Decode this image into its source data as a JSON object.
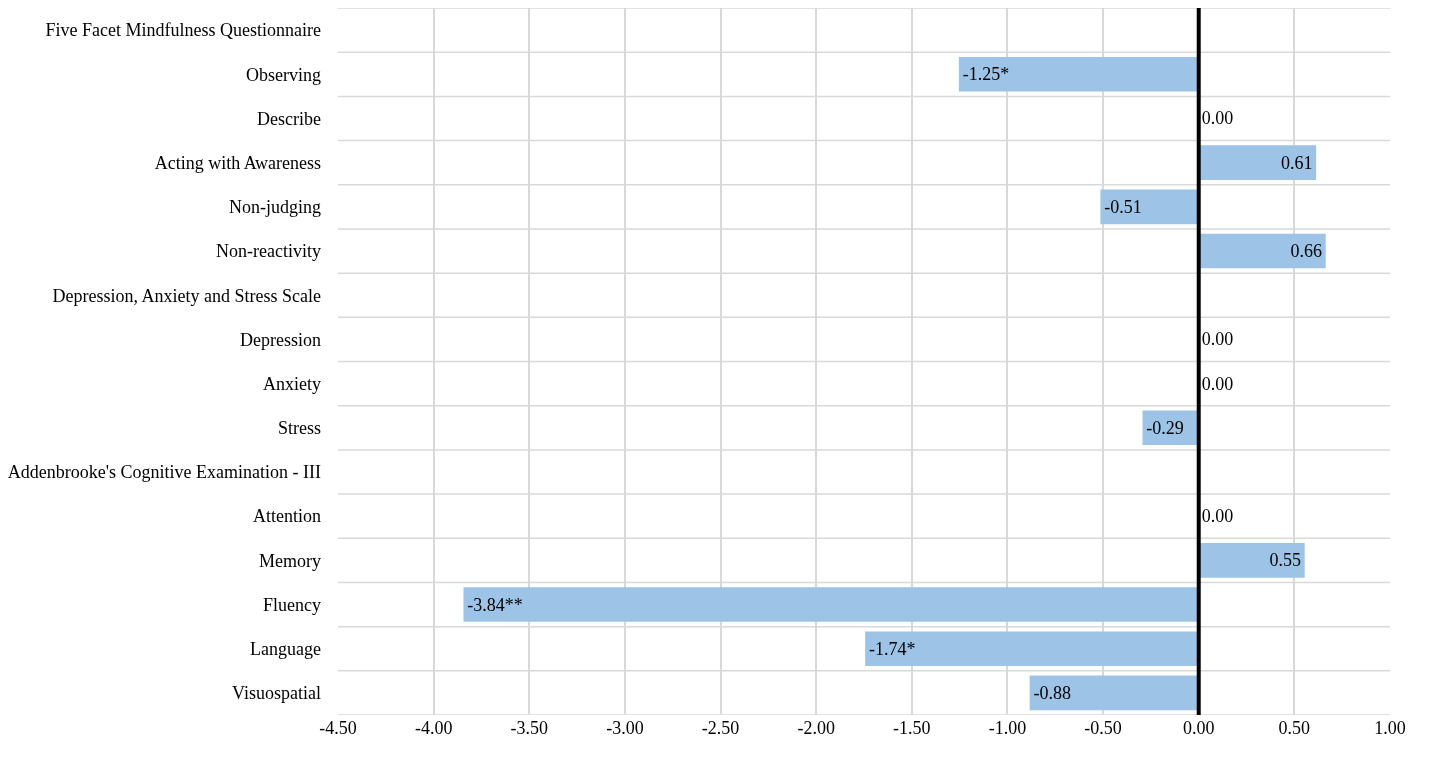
{
  "chart_data": {
    "type": "bar",
    "orientation": "horizontal",
    "categories": [
      "Five Facet Mindfulness Questionnaire",
      "Observing",
      "Describe",
      "Acting with Awareness",
      "Non-judging",
      "Non-reactivity",
      "Depression, Anxiety and Stress Scale",
      "Depression",
      "Anxiety",
      "Stress",
      "Addenbrooke's Cognitive Examination - III",
      "Attention",
      "Memory",
      "Fluency",
      "Language",
      "Visuospatial"
    ],
    "values": [
      null,
      -1.25,
      0,
      0.61,
      -0.51,
      0.66,
      null,
      0,
      0,
      -0.29,
      null,
      0,
      0.55,
      -3.84,
      -1.74,
      -0.88
    ],
    "value_labels": [
      null,
      "-1.25*",
      "0.00",
      "0.61",
      "-0.51",
      "0.66",
      null,
      "0.00",
      "0.00",
      "-0.29",
      null,
      "0.00",
      "0.55",
      "-3.84**",
      "-1.74*",
      "-0.88"
    ],
    "color": "#9dc3e6",
    "xlim": [
      -4.5,
      1.0
    ],
    "xticks": [
      {
        "value": -4.5,
        "label": "-4.50"
      },
      {
        "value": -4.0,
        "label": "-4.00"
      },
      {
        "value": -3.5,
        "label": "-3.50"
      },
      {
        "value": -3.0,
        "label": "-3.00"
      },
      {
        "value": -2.5,
        "label": "-2.50"
      },
      {
        "value": -2.0,
        "label": "-2.00"
      },
      {
        "value": -1.5,
        "label": "-1.50"
      },
      {
        "value": -1.0,
        "label": "-1.00"
      },
      {
        "value": -0.5,
        "label": "-0.50"
      },
      {
        "value": 0.0,
        "label": "0.00"
      },
      {
        "value": 0.5,
        "label": "0.50"
      },
      {
        "value": 1.0,
        "label": "1.00"
      }
    ],
    "ref_lines": [
      {
        "axis": "x",
        "value": 0,
        "color": "#000000"
      }
    ],
    "grid": true,
    "legend": false
  }
}
